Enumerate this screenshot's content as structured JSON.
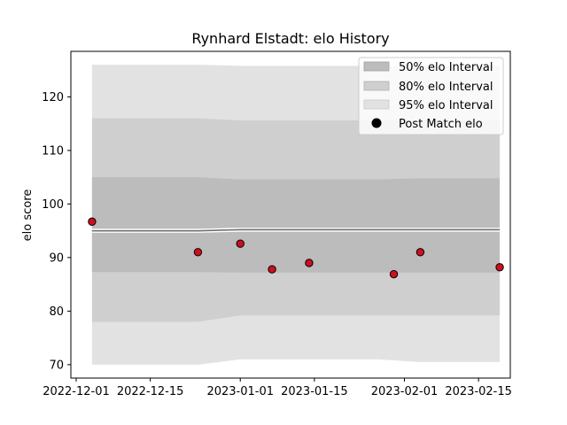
{
  "chart_data": {
    "type": "scatter",
    "title": "Rynhard Elstadt: elo History",
    "xlabel": "",
    "ylabel": "elo score",
    "x_range": [
      "2022-11-30",
      "2023-02-21"
    ],
    "ylim": [
      67.5,
      128.5
    ],
    "x_ticks": [
      "2022-12-01",
      "2022-12-15",
      "2023-01-01",
      "2023-01-15",
      "2023-02-01",
      "2023-02-15"
    ],
    "y_ticks": [
      70,
      80,
      90,
      100,
      110,
      120
    ],
    "grid": false,
    "legend_position": "top-right",
    "legend": [
      "50% elo Interval",
      "80% elo Interval",
      "95% elo Interval",
      "Post Match elo"
    ],
    "bands": [
      {
        "name": "95% elo Interval",
        "color": "#e2e2e2",
        "x": [
          "2022-12-04",
          "2022-12-24",
          "2023-01-01",
          "2023-01-27",
          "2023-02-04",
          "2023-02-19"
        ],
        "lower": [
          70.0,
          70.0,
          71.0,
          71.0,
          70.5,
          70.5
        ],
        "upper": [
          126.0,
          126.0,
          125.8,
          125.8,
          125.8,
          125.8
        ]
      },
      {
        "name": "80% elo Interval",
        "color": "#cfcfcf",
        "x": [
          "2022-12-04",
          "2022-12-24",
          "2023-01-01",
          "2023-01-27",
          "2023-02-04",
          "2023-02-19"
        ],
        "lower": [
          78.0,
          78.0,
          79.2,
          79.2,
          79.2,
          79.2
        ],
        "upper": [
          116.0,
          116.0,
          115.6,
          115.6,
          115.6,
          115.6
        ]
      },
      {
        "name": "50% elo Interval",
        "color": "#bcbcbc",
        "x": [
          "2022-12-04",
          "2022-12-24",
          "2023-01-01",
          "2023-01-27",
          "2023-02-04",
          "2023-02-19"
        ],
        "lower": [
          87.3,
          87.3,
          87.2,
          87.2,
          87.2,
          87.2
        ],
        "upper": [
          105.0,
          105.0,
          104.6,
          104.6,
          104.8,
          104.8
        ]
      }
    ],
    "center_line": {
      "x": [
        "2022-12-04",
        "2022-12-24",
        "2023-01-01",
        "2023-02-19"
      ],
      "y": [
        95.0,
        95.0,
        95.2,
        95.2
      ],
      "color": "#707070"
    },
    "series": [
      {
        "name": "Post Match elo",
        "color": "#cc1020",
        "x": [
          "2022-12-04",
          "2022-12-24",
          "2023-01-01",
          "2023-01-07",
          "2023-01-14",
          "2023-01-30",
          "2023-02-04",
          "2023-02-19"
        ],
        "y": [
          96.7,
          91.0,
          92.6,
          87.8,
          89.0,
          86.9,
          91.0,
          88.2
        ]
      }
    ]
  }
}
